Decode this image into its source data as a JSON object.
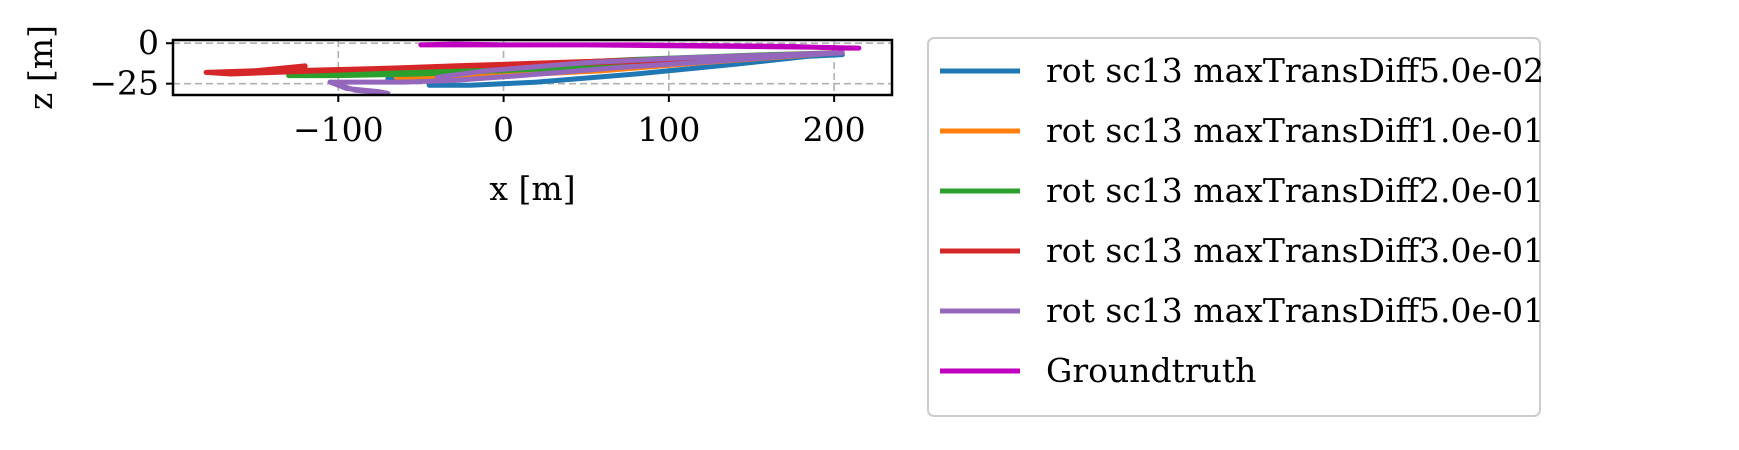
{
  "chart_data": {
    "type": "line",
    "title": "",
    "xlabel": "x [m]",
    "ylabel": "z [m]",
    "xlim": [
      -200,
      235
    ],
    "ylim": [
      -32,
      2
    ],
    "xticks": [
      -100,
      0,
      100,
      200
    ],
    "xtick_labels": [
      "−100",
      "0",
      "100",
      "200"
    ],
    "yticks": [
      0,
      -25
    ],
    "ytick_labels": [
      "0",
      "−25"
    ],
    "grid": true,
    "legend_position": "right",
    "series": [
      {
        "name": "rot sc13 maxTransDiff5.0e-02",
        "color": "#1f77b4",
        "x": [
          -45,
          -20,
          20,
          80,
          140,
          185,
          205,
          200,
          150,
          80,
          20,
          -40,
          -70
        ],
        "y": [
          -26,
          -26,
          -24,
          -19,
          -13,
          -8,
          -7,
          -7,
          -9,
          -13,
          -17,
          -20,
          -22
        ]
      },
      {
        "name": "rot sc13 maxTransDiff1.0e-01",
        "color": "#ff7f0e",
        "x": [
          -65,
          -40,
          0,
          60,
          120,
          175,
          200,
          170,
          110,
          50,
          0,
          -40,
          -65
        ],
        "y": [
          -21,
          -21,
          -20,
          -17,
          -12,
          -8,
          -6,
          -7,
          -10,
          -13,
          -16,
          -19,
          -21
        ]
      },
      {
        "name": "rot sc13 maxTransDiff2.0e-01",
        "color": "#2ca02c",
        "x": [
          -130,
          -100,
          -50,
          20,
          100,
          170,
          200,
          160,
          80,
          0,
          -60,
          -110,
          -130
        ],
        "y": [
          -20,
          -20,
          -19,
          -16,
          -12,
          -8,
          -6,
          -7,
          -10,
          -14,
          -17,
          -19,
          -20
        ]
      },
      {
        "name": "rot sc13 maxTransDiff3.0e-01",
        "color": "#d62728",
        "x": [
          -180,
          -150,
          -120,
          -130,
          -90,
          -20,
          60,
          140,
          200,
          150,
          60,
          -30,
          -110,
          -165,
          -180
        ],
        "y": [
          -18,
          -17,
          -14,
          -17,
          -16,
          -14,
          -12,
          -9,
          -6,
          -8,
          -11,
          -14,
          -17,
          -19,
          -18
        ]
      },
      {
        "name": "rot sc13 maxTransDiff5.0e-01",
        "color": "#9467bd",
        "x": [
          -105,
          -95,
          -75,
          -70,
          -90,
          -105,
          -60,
          -30,
          10,
          70,
          130,
          185,
          205,
          170,
          110,
          50,
          -10,
          -40
        ],
        "y": [
          -24,
          -28,
          -30,
          -31,
          -29,
          -24,
          -24,
          -23,
          -20,
          -15,
          -11,
          -7,
          -6,
          -7,
          -9,
          -12,
          -17,
          -21
        ]
      },
      {
        "name": "Groundtruth",
        "color": "#bf00bf",
        "x": [
          -50,
          -20,
          30,
          80,
          130,
          175,
          205,
          215,
          190,
          150,
          100,
          50,
          0,
          -30,
          -50
        ],
        "y": [
          -1,
          -1,
          -1,
          -1,
          -1.5,
          -2,
          -3,
          -3,
          -2.5,
          -2,
          -1.5,
          -1,
          -1,
          -0.5,
          -1
        ]
      }
    ]
  }
}
